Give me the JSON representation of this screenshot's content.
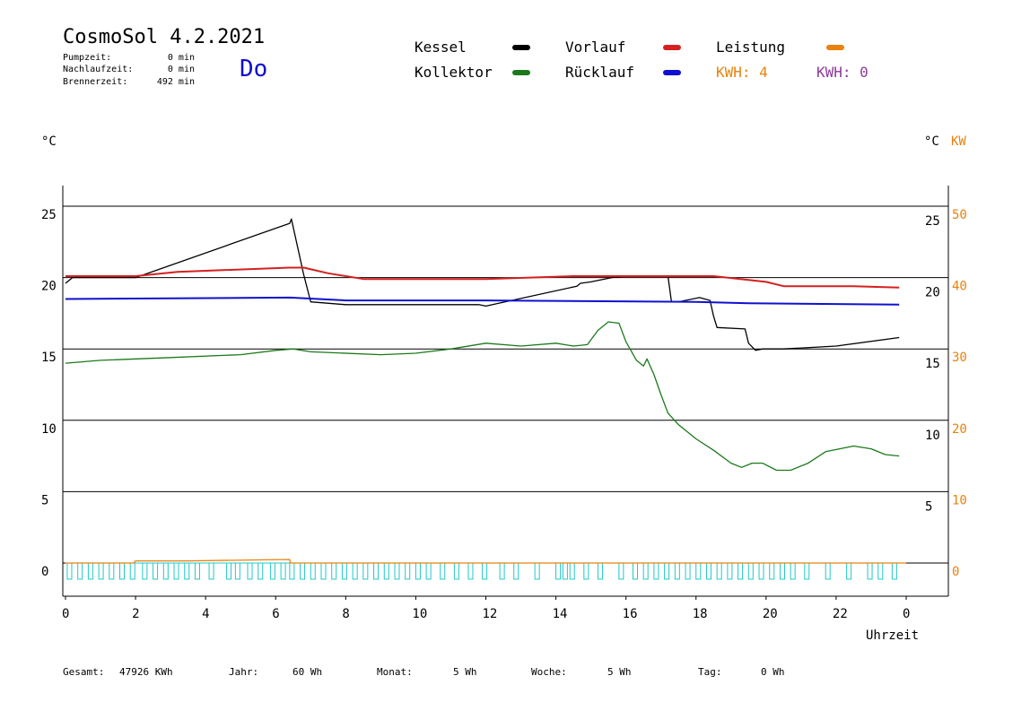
{
  "header": {
    "title": "CosmoSol 4.2.2021",
    "day": "Do",
    "pumpzeit_label": "Pumpzeit:",
    "pumpzeit_value": "0 min",
    "nachlaufzeit_label": "Nachlaufzeit:",
    "nachlaufzeit_value": "0 min",
    "brennerzeit_label": "Brennerzeit:",
    "brennerzeit_value": "492 min"
  },
  "legend": {
    "kessel": "Kessel",
    "kollektor": "Kollektor",
    "vorlauf": "Vorlauf",
    "ruecklauf": "Rücklauf",
    "leistung": "Leistung",
    "kwh_1": "KWH: 4",
    "kwh_2": "KWH: 0"
  },
  "colors": {
    "kessel": "#000000",
    "kollektor": "#1a7a1a",
    "vorlauf": "#d42020",
    "ruecklauf": "#1010d0",
    "leistung": "#e8820c",
    "kwh_2": "#8a3a9a",
    "pump": "#22c8c8"
  },
  "axes": {
    "left_unit": "°C",
    "right_unit_c": "°C",
    "right_unit_kw": "KW",
    "x_label": "Uhrzeit"
  },
  "footer": {
    "gesamt_label": "Gesamt:",
    "gesamt_value": "47926 KWh",
    "jahr_label": "Jahr:",
    "jahr_value": "60 Wh",
    "monat_label": "Monat:",
    "monat_value": "5 Wh",
    "woche_label": "Woche:",
    "woche_value": "5 Wh",
    "tag_label": "Tag:",
    "tag_value": "0 Wh"
  },
  "chart_data": {
    "type": "line",
    "xlabel": "Uhrzeit",
    "x_ticks": [
      "0",
      "2",
      "4",
      "6",
      "8",
      "10",
      "12",
      "14",
      "16",
      "18",
      "20",
      "22",
      "0"
    ],
    "xlim": [
      0,
      24
    ],
    "ylim": [
      -2,
      27.7
    ],
    "y_ticks_left": [
      0,
      5,
      10,
      15,
      20,
      25
    ],
    "y_ticks_right_c": [
      5,
      10,
      15,
      20,
      25
    ],
    "y_ticks_right_kw": [
      0,
      10,
      20,
      30,
      40,
      50
    ],
    "grid": "horizontal",
    "series": [
      {
        "name": "Kessel",
        "x": [
          0,
          0.2,
          2,
          6.4,
          6.45,
          6.8,
          7,
          8,
          11.8,
          12,
          14.6,
          14.7,
          15,
          15.6,
          16,
          17.2,
          17.3,
          17.5,
          18.1,
          18.4,
          18.5,
          18.6,
          19.4,
          19.5,
          19.7,
          19.9,
          20.5,
          22,
          23.8
        ],
        "y": [
          19.6,
          20,
          20,
          23.8,
          24.1,
          20.2,
          18.3,
          18.1,
          18.1,
          18.0,
          19.4,
          19.6,
          19.7,
          20.0,
          20.1,
          20.1,
          18.3,
          18.3,
          18.6,
          18.4,
          17.3,
          16.5,
          16.4,
          15.4,
          14.9,
          15.0,
          15.0,
          15.2,
          15.8
        ]
      },
      {
        "name": "Vorlauf",
        "x": [
          0,
          2,
          3.2,
          6.4,
          6.8,
          7.5,
          8.5,
          9.5,
          12,
          14.5,
          18.5,
          20,
          20.5,
          22.5,
          23.8
        ],
        "y": [
          20.1,
          20.1,
          20.4,
          20.7,
          20.7,
          20.3,
          19.9,
          19.9,
          19.9,
          20.1,
          20.1,
          19.7,
          19.4,
          19.4,
          19.3
        ]
      },
      {
        "name": "Rücklauf",
        "x": [
          0,
          6.4,
          8,
          12,
          18,
          19.5,
          23.8
        ],
        "y": [
          18.5,
          18.6,
          18.4,
          18.4,
          18.3,
          18.2,
          18.1
        ]
      },
      {
        "name": "Kollektor",
        "x": [
          0,
          1,
          3,
          5,
          6,
          6.5,
          7,
          9,
          10,
          11,
          12,
          13,
          14,
          14.5,
          14.9,
          15.2,
          15.5,
          15.8,
          16,
          16.3,
          16.5,
          16.6,
          16.8,
          17,
          17.2,
          17.5,
          18,
          18.5,
          19,
          19.3,
          19.6,
          19.9,
          20.3,
          20.7,
          21.2,
          21.7,
          22.5,
          23,
          23.4,
          23.8
        ],
        "y": [
          14,
          14.2,
          14.4,
          14.6,
          14.9,
          15,
          14.8,
          14.6,
          14.7,
          15,
          15.4,
          15.2,
          15.4,
          15.2,
          15.3,
          16.3,
          16.9,
          16.8,
          15.5,
          14.2,
          13.8,
          14.3,
          13.2,
          11.8,
          10.5,
          9.7,
          8.7,
          7.9,
          7.0,
          6.7,
          7.0,
          7.0,
          6.5,
          6.5,
          7.0,
          7.8,
          8.2,
          8.0,
          7.6,
          7.5
        ]
      },
      {
        "name": "Leistung",
        "x": [
          0,
          1.95,
          2.0,
          3.5,
          6.4,
          6.42,
          24
        ],
        "y": [
          0,
          0,
          0.15,
          0.15,
          0.25,
          0,
          0
        ]
      }
    ],
    "pump_cycles_hours": [
      0.05,
      0.35,
      0.65,
      0.95,
      1.25,
      1.55,
      1.85,
      2.2,
      2.5,
      2.8,
      3.1,
      3.4,
      3.7,
      4.1,
      4.6,
      4.85,
      5.2,
      5.5,
      5.85,
      6.15,
      6.4,
      6.7,
      7.0,
      7.3,
      7.6,
      7.9,
      8.2,
      8.5,
      8.8,
      9.1,
      9.4,
      9.7,
      10.0,
      10.3,
      10.7,
      11.1,
      11.5,
      11.9,
      12.4,
      12.8,
      13.4,
      14.0,
      14.2,
      14.4,
      14.8,
      15.2,
      15.8,
      16.2,
      16.5,
      16.8,
      17.1,
      17.4,
      17.7,
      18.0,
      18.3,
      18.6,
      18.9,
      19.2,
      19.5,
      19.8,
      20.1,
      20.4,
      20.7,
      21.1,
      21.7,
      22.3,
      22.9,
      23.2,
      23.6
    ]
  }
}
